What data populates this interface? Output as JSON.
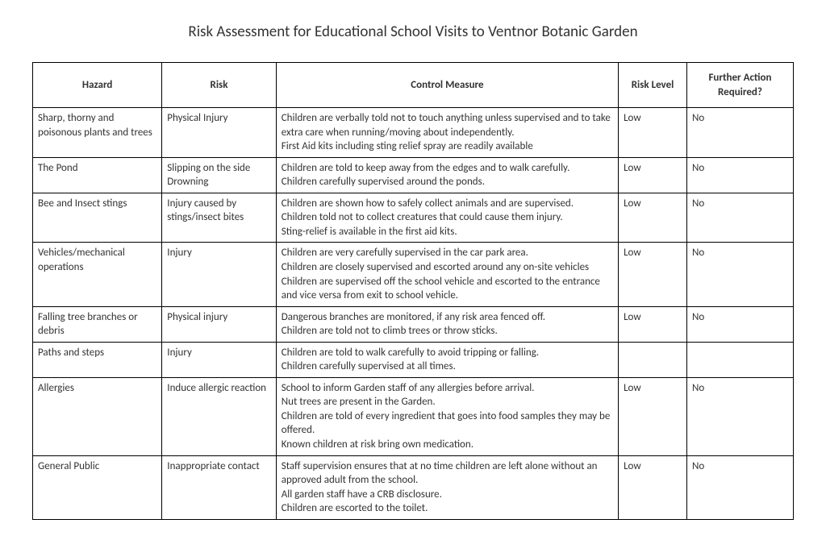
{
  "title": "Risk Assessment for Educational School Visits to Ventnor Botanic Garden",
  "table": {
    "columns": [
      {
        "label": "Hazard",
        "width": "17%"
      },
      {
        "label": "Risk",
        "width": "15%"
      },
      {
        "label": "Control Measure",
        "width": "45%"
      },
      {
        "label": "Risk Level",
        "width": "9%"
      },
      {
        "label": "Further Action Required?",
        "width": "14%"
      }
    ],
    "rows": [
      {
        "hazard": "Sharp, thorny and poisonous plants and trees",
        "risk": "Physical Injury",
        "control_lines": [
          "Children are verbally told not to touch anything unless supervised and to take extra care when running/moving about independently.",
          "First Aid kits including sting relief spray are readily available"
        ],
        "risk_level": "Low",
        "further_action": "No"
      },
      {
        "hazard": "The Pond",
        "risk": "Slipping on the side Drowning",
        "control_lines": [
          "Children are told to keep away from the edges and to walk carefully.",
          "Children carefully supervised around the ponds."
        ],
        "risk_level": "Low",
        "further_action": "No"
      },
      {
        "hazard": "Bee and Insect stings",
        "risk": "Injury caused by stings/insect bites",
        "control_lines": [
          "Children are shown how to safely collect animals and are supervised.",
          "Children told not to collect creatures that could cause them injury.",
          "Sting-relief is available in the first aid kits."
        ],
        "risk_level": "Low",
        "further_action": "No"
      },
      {
        "hazard": "Vehicles/mechanical operations",
        "risk": "Injury",
        "control_lines": [
          "Children are very carefully supervised in the car park area.",
          "Children are closely supervised and escorted around any on-site vehicles",
          "Children are supervised off the school vehicle and escorted to the entrance and vice versa from exit to school vehicle."
        ],
        "risk_level": "Low",
        "further_action": "No"
      },
      {
        "hazard": "Falling tree branches or debris",
        "risk": "Physical injury",
        "control_lines": [
          "Dangerous branches are monitored, if any risk area fenced off.",
          "Children are told not to climb trees or throw sticks."
        ],
        "risk_level": "Low",
        "further_action": "No"
      },
      {
        "hazard": "Paths and steps",
        "risk": "Injury",
        "control_lines": [
          "Children are told to walk carefully to avoid tripping or falling.",
          "Children carefully supervised at all times."
        ],
        "risk_level": "",
        "further_action": ""
      },
      {
        "hazard": "Allergies",
        "risk": "Induce allergic reaction",
        "control_lines": [
          "School to inform Garden staff of any allergies before arrival.",
          "Nut trees are present in the Garden.",
          "Children are told of every ingredient that goes into food samples they may be offered.",
          "Known children at risk bring own medication."
        ],
        "risk_level": "Low",
        "further_action": "No"
      },
      {
        "hazard": "General Public",
        "risk": "Inappropriate contact",
        "control_lines": [
          "Staff supervision ensures that at no time children are left alone without an approved adult from the school.",
          "All garden staff have a CRB disclosure.",
          "Children are escorted to the toilet."
        ],
        "risk_level": "Low",
        "further_action": "No"
      }
    ]
  },
  "style": {
    "background_color": "#ffffff",
    "text_color": "#333333",
    "border_color": "#000000",
    "title_fontsize": 19,
    "cell_fontsize": 13,
    "font_family": "Calibri, Arial, sans-serif"
  }
}
